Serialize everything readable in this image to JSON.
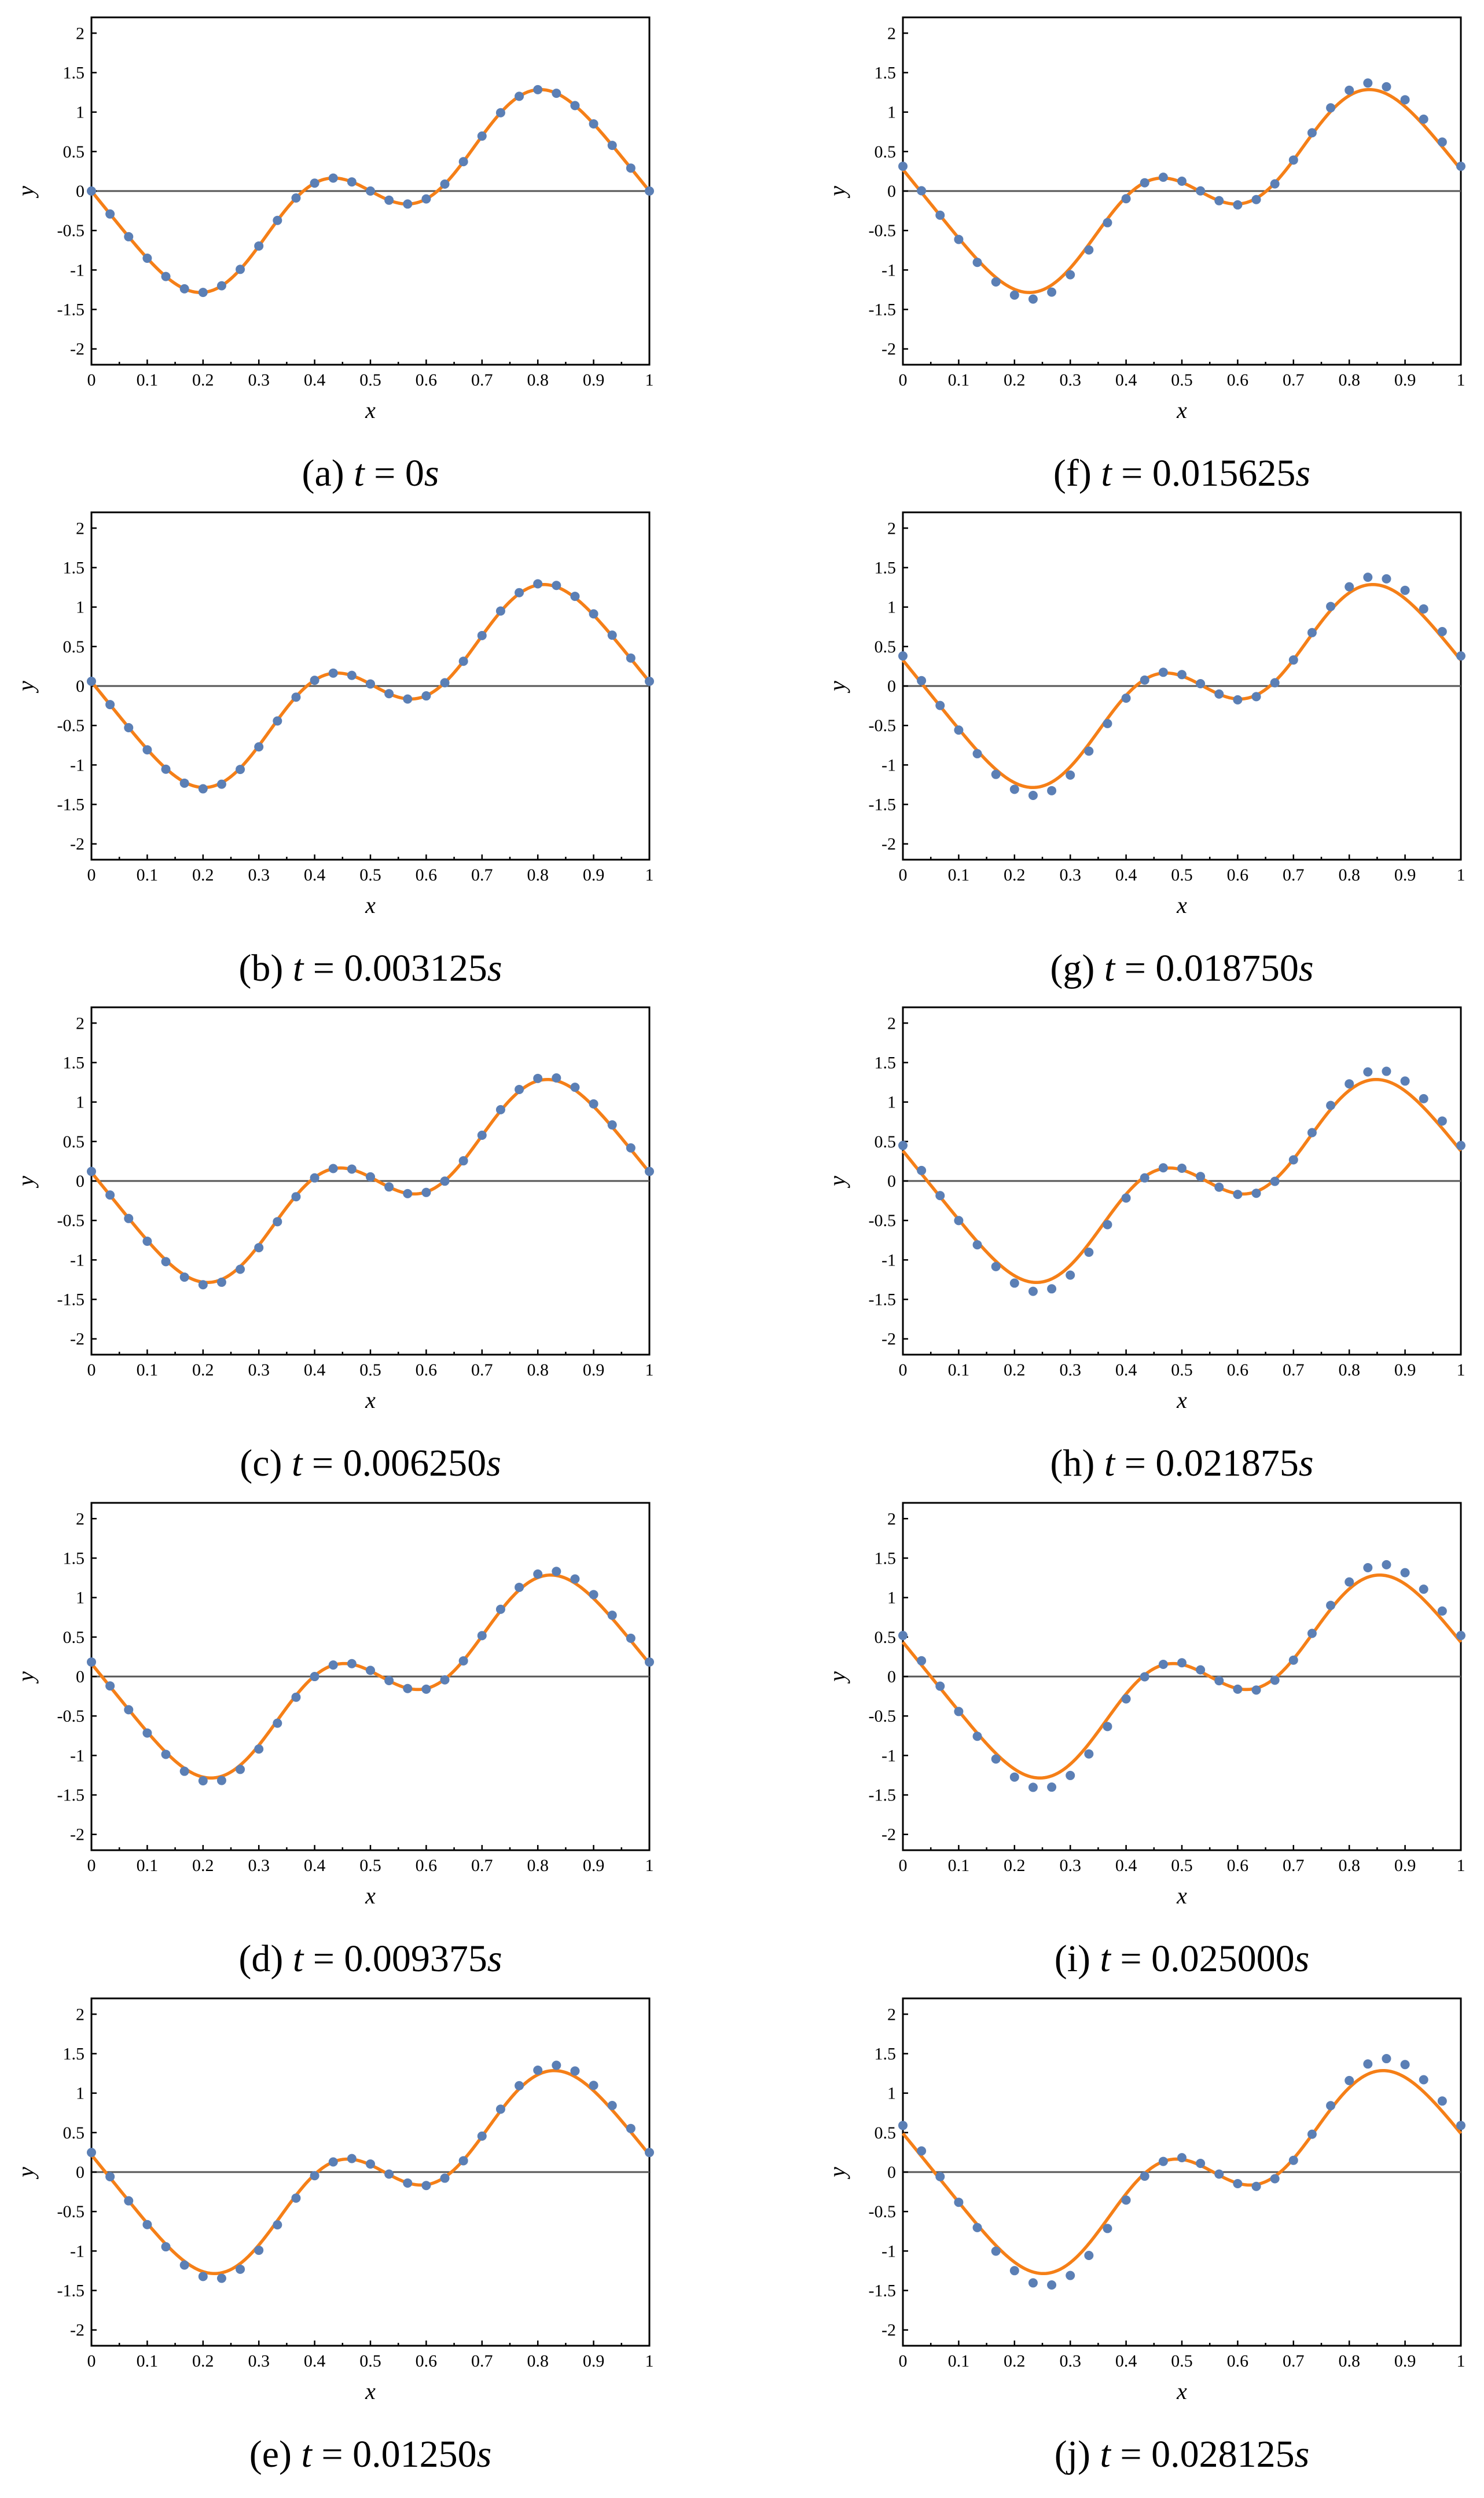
{
  "chart_data": [
    {
      "type": "line+scatter",
      "caption": "(a)",
      "t_var": "t",
      "eq": "=",
      "t_value": "0",
      "unit": "s",
      "t_num": 0,
      "xlabel": "x",
      "ylabel": "y",
      "xlim": [
        0,
        1
      ],
      "ylim": [
        -2.2,
        2.2
      ]
    },
    {
      "type": "line+scatter",
      "caption": "(b)",
      "t_var": "t",
      "eq": "=",
      "t_value": "0.003125",
      "unit": "s",
      "t_num": 0.003125,
      "xlabel": "x",
      "ylabel": "y",
      "xlim": [
        0,
        1
      ],
      "ylim": [
        -2.2,
        2.2
      ]
    },
    {
      "type": "line+scatter",
      "caption": "(c)",
      "t_var": "t",
      "eq": "=",
      "t_value": "0.006250",
      "unit": "s",
      "t_num": 0.00625,
      "xlabel": "x",
      "ylabel": "y",
      "xlim": [
        0,
        1
      ],
      "ylim": [
        -2.2,
        2.2
      ]
    },
    {
      "type": "line+scatter",
      "caption": "(d)",
      "t_var": "t",
      "eq": "=",
      "t_value": "0.009375",
      "unit": "s",
      "t_num": 0.009375,
      "xlabel": "x",
      "ylabel": "y",
      "xlim": [
        0,
        1
      ],
      "ylim": [
        -2.2,
        2.2
      ]
    },
    {
      "type": "line+scatter",
      "caption": "(e)",
      "t_var": "t",
      "eq": "=",
      "t_value": "0.01250",
      "unit": "s",
      "t_num": 0.0125,
      "xlabel": "x",
      "ylabel": "y",
      "xlim": [
        0,
        1
      ],
      "ylim": [
        -2.2,
        2.2
      ]
    },
    {
      "type": "line+scatter",
      "caption": "(f)",
      "t_var": "t",
      "eq": "=",
      "t_value": "0.015625",
      "unit": "s",
      "t_num": 0.015625,
      "xlabel": "x",
      "ylabel": "y",
      "xlim": [
        0,
        1
      ],
      "ylim": [
        -2.2,
        2.2
      ]
    },
    {
      "type": "line+scatter",
      "caption": "(g)",
      "t_var": "t",
      "eq": "=",
      "t_value": "0.018750",
      "unit": "s",
      "t_num": 0.01875,
      "xlabel": "x",
      "ylabel": "y",
      "xlim": [
        0,
        1
      ],
      "ylim": [
        -2.2,
        2.2
      ]
    },
    {
      "type": "line+scatter",
      "caption": "(h)",
      "t_var": "t",
      "eq": "=",
      "t_value": "0.021875",
      "unit": "s",
      "t_num": 0.021875,
      "xlabel": "x",
      "ylabel": "y",
      "xlim": [
        0,
        1
      ],
      "ylim": [
        -2.2,
        2.2
      ]
    },
    {
      "type": "line+scatter",
      "caption": "(i)",
      "t_var": "t",
      "eq": "=",
      "t_value": "0.025000",
      "unit": "s",
      "t_num": 0.025,
      "xlabel": "x",
      "ylabel": "y",
      "xlim": [
        0,
        1
      ],
      "ylim": [
        -2.2,
        2.2
      ]
    },
    {
      "type": "line+scatter",
      "caption": "(j)",
      "t_var": "t",
      "eq": "=",
      "t_value": "0.028125",
      "unit": "s",
      "t_num": 0.028125,
      "xlabel": "x",
      "ylabel": "y",
      "xlim": [
        0,
        1
      ],
      "ylim": [
        -2.2,
        2.2
      ]
    }
  ],
  "axes": {
    "x_ticks": [
      0,
      0.1,
      0.2,
      0.3,
      0.4,
      0.5,
      0.6,
      0.7,
      0.8,
      0.9,
      1
    ],
    "x_tick_labels": [
      "0",
      "0.1",
      "0.2",
      "0.3",
      "0.4",
      "0.5",
      "0.6",
      "0.7",
      "0.8",
      "0.9",
      "1"
    ],
    "y_ticks": [
      -2,
      -1.5,
      -1,
      -0.5,
      0,
      0.5,
      1,
      1.5,
      2
    ],
    "y_tick_labels": [
      "-2",
      "-1.5",
      "-1",
      "-0.5",
      "0",
      "0.5",
      "1",
      "1.5",
      "2"
    ]
  },
  "series_model": {
    "curve_name": "solution",
    "points_name": "samples",
    "n_points": 31,
    "curve_color": "#F57F17",
    "point_color": "#5B7FB5",
    "zero_line_color": "#555555"
  }
}
